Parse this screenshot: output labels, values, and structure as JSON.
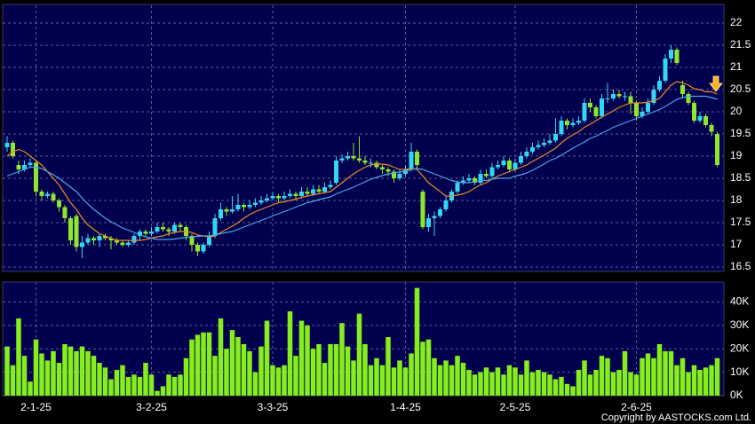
{
  "chart_data": [
    {
      "type": "candlestick",
      "categories": [
        null,
        null,
        null,
        null,
        null,
        "2-1-25",
        null,
        null,
        null,
        null,
        null,
        null,
        null,
        null,
        null,
        null,
        null,
        null,
        null,
        null,
        null,
        null,
        null,
        null,
        null,
        "3-2-25",
        null,
        null,
        null,
        null,
        null,
        null,
        null,
        null,
        null,
        null,
        null,
        null,
        null,
        null,
        null,
        null,
        null,
        null,
        null,
        null,
        "3-3-25",
        null,
        null,
        null,
        null,
        null,
        null,
        null,
        null,
        null,
        null,
        null,
        null,
        null,
        null,
        null,
        null,
        null,
        null,
        null,
        null,
        null,
        null,
        "1-4-25",
        null,
        null,
        null,
        null,
        null,
        null,
        null,
        null,
        null,
        null,
        null,
        null,
        null,
        null,
        null,
        null,
        null,
        null,
        "2-5-25",
        null,
        null,
        null,
        null,
        null,
        null,
        null,
        null,
        null,
        null,
        null,
        null,
        null,
        null,
        null,
        null,
        null,
        null,
        null,
        null,
        "2-6-25",
        null,
        null,
        null,
        null,
        null,
        null,
        null,
        null,
        null,
        null,
        null,
        null,
        null,
        null
      ],
      "open": [
        19.2,
        19.3,
        18.8,
        18.7,
        18.8,
        18.85,
        18.2,
        18.1,
        18.15,
        18.0,
        17.85,
        17.6,
        17.65,
        16.95,
        17.05,
        17.15,
        17.1,
        17.2,
        17.15,
        17.1,
        17.05,
        17.0,
        17.05,
        17.2,
        17.3,
        17.25,
        17.3,
        17.4,
        17.35,
        17.3,
        17.45,
        17.4,
        17.2,
        17.0,
        16.85,
        17.0,
        17.2,
        17.6,
        17.8,
        17.75,
        17.8,
        17.9,
        17.85,
        17.9,
        17.95,
        18.0,
        18.05,
        18.1,
        18.05,
        18.1,
        18.15,
        18.1,
        18.2,
        18.15,
        18.25,
        18.2,
        18.3,
        18.4,
        18.9,
        18.95,
        19.0,
        18.95,
        18.9,
        18.85,
        18.85,
        18.75,
        18.7,
        18.65,
        18.5,
        18.6,
        18.7,
        19.1,
        18.2,
        17.4,
        17.6,
        17.65,
        17.8,
        18.0,
        18.2,
        18.4,
        18.45,
        18.5,
        18.4,
        18.6,
        18.55,
        18.75,
        18.8,
        18.9,
        18.7,
        18.85,
        19.0,
        19.1,
        19.2,
        19.25,
        19.3,
        19.35,
        19.5,
        19.8,
        19.7,
        19.75,
        19.8,
        20.2,
        20.1,
        19.9,
        20.3,
        20.3,
        20.4,
        20.35,
        20.35,
        20.2,
        19.9,
        20.0,
        20.2,
        20.5,
        20.7,
        21.2,
        21.4,
        20.6,
        20.4,
        20.2,
        19.8,
        19.9,
        19.7,
        19.5
      ],
      "high": [
        19.45,
        19.35,
        18.9,
        18.9,
        18.95,
        18.9,
        18.25,
        18.2,
        18.2,
        18.05,
        17.9,
        17.65,
        17.7,
        17.2,
        17.25,
        17.2,
        17.25,
        17.25,
        17.2,
        17.15,
        17.1,
        17.1,
        17.25,
        17.35,
        17.35,
        17.4,
        17.5,
        17.5,
        17.4,
        17.5,
        17.5,
        17.45,
        17.25,
        17.05,
        17.05,
        17.3,
        17.7,
        17.95,
        17.85,
        18.1,
        18.15,
        17.95,
        18.0,
        18.05,
        18.1,
        18.15,
        18.2,
        18.15,
        18.2,
        18.25,
        18.2,
        18.3,
        18.3,
        18.35,
        18.35,
        18.4,
        18.45,
        19.0,
        19.05,
        19.1,
        19.3,
        19.45,
        19.0,
        18.95,
        18.9,
        18.8,
        18.75,
        18.7,
        18.7,
        18.8,
        19.3,
        19.15,
        18.25,
        17.7,
        17.75,
        17.85,
        18.1,
        18.25,
        18.45,
        18.55,
        18.6,
        18.55,
        18.7,
        18.7,
        18.85,
        18.9,
        19.0,
        18.95,
        18.95,
        19.1,
        19.2,
        19.3,
        19.35,
        19.4,
        19.5,
        19.85,
        19.9,
        19.85,
        19.85,
        19.9,
        20.3,
        20.3,
        20.15,
        20.4,
        20.65,
        20.5,
        20.5,
        20.45,
        20.45,
        20.25,
        20.1,
        20.3,
        20.6,
        20.8,
        21.3,
        21.5,
        21.45,
        20.7,
        20.45,
        20.25,
        20.0,
        19.95,
        19.75,
        19.55
      ],
      "low": [
        19.1,
        18.95,
        18.6,
        18.65,
        18.75,
        18.1,
        18.0,
        18.05,
        17.95,
        17.75,
        17.5,
        17.0,
        16.85,
        16.7,
        17.0,
        17.0,
        16.95,
        17.1,
        16.9,
        17.0,
        16.95,
        16.95,
        17.0,
        17.1,
        17.2,
        17.2,
        17.25,
        17.3,
        17.2,
        17.25,
        17.3,
        17.1,
        16.85,
        16.75,
        16.8,
        16.95,
        17.15,
        17.55,
        17.65,
        17.7,
        17.75,
        17.75,
        17.8,
        17.85,
        17.9,
        17.95,
        18.0,
        17.95,
        18.0,
        18.05,
        18.0,
        18.05,
        18.1,
        18.1,
        18.15,
        18.15,
        18.25,
        18.35,
        18.85,
        18.9,
        18.9,
        18.85,
        18.8,
        18.75,
        18.7,
        18.6,
        18.55,
        18.4,
        18.45,
        18.55,
        18.65,
        18.7,
        17.35,
        17.3,
        17.2,
        17.6,
        17.75,
        17.95,
        18.15,
        18.35,
        18.4,
        18.35,
        18.35,
        18.5,
        18.5,
        18.7,
        18.75,
        18.65,
        18.65,
        18.8,
        18.95,
        19.05,
        19.15,
        19.2,
        19.25,
        19.3,
        19.45,
        19.6,
        19.65,
        19.7,
        19.75,
        20.0,
        19.85,
        19.85,
        20.2,
        20.25,
        20.3,
        20.25,
        19.95,
        19.8,
        19.85,
        19.95,
        20.15,
        20.45,
        20.65,
        21.1,
        21.05,
        20.3,
        20.15,
        19.75,
        19.75,
        19.65,
        19.45,
        18.75
      ],
      "close": [
        19.3,
        19.0,
        18.7,
        18.8,
        18.85,
        18.2,
        18.1,
        18.15,
        18.0,
        17.85,
        17.6,
        17.1,
        16.95,
        17.05,
        17.15,
        17.1,
        17.2,
        17.15,
        17.1,
        17.05,
        17.0,
        17.05,
        17.2,
        17.3,
        17.25,
        17.3,
        17.4,
        17.35,
        17.3,
        17.45,
        17.4,
        17.2,
        17.0,
        16.85,
        17.0,
        17.2,
        17.6,
        17.8,
        17.75,
        17.8,
        17.9,
        17.85,
        17.9,
        17.95,
        18.0,
        18.05,
        18.1,
        18.05,
        18.1,
        18.15,
        18.1,
        18.2,
        18.15,
        18.25,
        18.2,
        18.3,
        18.35,
        18.9,
        18.95,
        19.0,
        18.95,
        18.9,
        18.85,
        18.85,
        18.75,
        18.7,
        18.65,
        18.5,
        18.6,
        18.7,
        19.1,
        18.8,
        17.4,
        17.6,
        17.65,
        17.8,
        18.0,
        18.2,
        18.4,
        18.45,
        18.5,
        18.4,
        18.6,
        18.55,
        18.75,
        18.8,
        18.9,
        18.7,
        18.85,
        19.0,
        19.1,
        19.2,
        19.25,
        19.3,
        19.35,
        19.5,
        19.8,
        19.7,
        19.75,
        19.8,
        20.2,
        20.1,
        19.9,
        20.3,
        20.3,
        20.4,
        20.35,
        20.35,
        20.2,
        19.9,
        20.0,
        20.2,
        20.5,
        20.7,
        21.2,
        21.4,
        21.1,
        20.4,
        20.2,
        19.8,
        19.9,
        19.7,
        19.55,
        18.8
      ],
      "up_color": "#33d6f5",
      "down_color": "#8ee62e",
      "series": [
        {
          "color": "#f08a24",
          "values": [
            19.0,
            19.1,
            19.15,
            19.1,
            19.0,
            18.9,
            18.8,
            18.65,
            18.5,
            18.35,
            18.15,
            17.95,
            17.8,
            17.6,
            17.45,
            17.35,
            17.25,
            17.2,
            17.15,
            17.1,
            17.1,
            17.1,
            17.1,
            17.1,
            17.12,
            17.15,
            17.18,
            17.2,
            17.25,
            17.28,
            17.3,
            17.3,
            17.28,
            17.22,
            17.2,
            17.18,
            17.2,
            17.28,
            17.35,
            17.42,
            17.5,
            17.6,
            17.68,
            17.75,
            17.8,
            17.85,
            17.9,
            17.95,
            17.97,
            18.0,
            18.03,
            18.07,
            18.1,
            18.13,
            18.15,
            18.18,
            18.2,
            18.3,
            18.4,
            18.5,
            18.6,
            18.68,
            18.75,
            18.8,
            18.82,
            18.82,
            18.8,
            18.75,
            18.7,
            18.7,
            18.72,
            18.7,
            18.55,
            18.4,
            18.3,
            18.2,
            18.1,
            18.1,
            18.12,
            18.15,
            18.2,
            18.28,
            18.35,
            18.4,
            18.48,
            18.55,
            18.6,
            18.65,
            18.7,
            18.75,
            18.8,
            18.88,
            18.95,
            19.02,
            19.1,
            19.18,
            19.3,
            19.4,
            19.48,
            19.55,
            19.65,
            19.72,
            19.8,
            19.88,
            19.95,
            20.02,
            20.1,
            20.15,
            20.2,
            20.2,
            20.2,
            20.22,
            20.25,
            20.3,
            20.45,
            20.6,
            20.68,
            20.65,
            20.6,
            20.52,
            20.5,
            20.45,
            20.45,
            20.4
          ]
        },
        {
          "color": "#4aa8ec",
          "values": [
            18.55,
            18.6,
            18.65,
            18.7,
            18.75,
            18.75,
            18.72,
            18.65,
            18.58,
            18.5,
            18.4,
            18.3,
            18.2,
            18.05,
            17.92,
            17.8,
            17.7,
            17.6,
            17.52,
            17.45,
            17.38,
            17.33,
            17.28,
            17.22,
            17.18,
            17.15,
            17.12,
            17.12,
            17.12,
            17.13,
            17.15,
            17.17,
            17.18,
            17.19,
            17.2,
            17.2,
            17.22,
            17.25,
            17.28,
            17.3,
            17.35,
            17.4,
            17.45,
            17.5,
            17.55,
            17.6,
            17.65,
            17.7,
            17.75,
            17.8,
            17.85,
            17.9,
            17.95,
            17.98,
            18.02,
            18.05,
            18.08,
            18.15,
            18.2,
            18.25,
            18.3,
            18.36,
            18.42,
            18.48,
            18.52,
            18.56,
            18.6,
            18.62,
            18.64,
            18.66,
            18.7,
            18.72,
            18.7,
            18.65,
            18.6,
            18.55,
            18.5,
            18.45,
            18.42,
            18.4,
            18.4,
            18.42,
            18.45,
            18.45,
            18.48,
            18.5,
            18.5,
            18.5,
            18.55,
            18.58,
            18.62,
            18.68,
            18.75,
            18.82,
            18.9,
            18.95,
            19.02,
            19.1,
            19.18,
            19.25,
            19.32,
            19.4,
            19.45,
            19.52,
            19.58,
            19.65,
            19.7,
            19.75,
            19.8,
            19.85,
            19.9,
            19.95,
            20.0,
            20.05,
            20.12,
            20.2,
            20.28,
            20.32,
            20.35,
            20.35,
            20.35,
            20.35,
            20.32,
            20.28
          ]
        }
      ],
      "ylim": [
        16.4,
        22.4
      ],
      "yticks": [
        16.5,
        17,
        17.5,
        18,
        18.5,
        19,
        19.5,
        20,
        20.5,
        21,
        21.5,
        22
      ],
      "grid": true
    },
    {
      "type": "bar",
      "color": "#86ee1c",
      "values": [
        21,
        13,
        33,
        17,
        6,
        24,
        18,
        15,
        19,
        14,
        22,
        21,
        19,
        21,
        19,
        17,
        14,
        12,
        7,
        11,
        13,
        8,
        9,
        8,
        14,
        9,
        2,
        4,
        9,
        8,
        9,
        16,
        24,
        26,
        27,
        27,
        17,
        33,
        20,
        28,
        25,
        22,
        19,
        10,
        21,
        32,
        13,
        12,
        13,
        36,
        17,
        32,
        30,
        20,
        22,
        14,
        22,
        22,
        31,
        21,
        15,
        35,
        22,
        13,
        16,
        13,
        25,
        12,
        15,
        12,
        18,
        46,
        23,
        24,
        16,
        13,
        15,
        13,
        17,
        14,
        11,
        9,
        10,
        12,
        10,
        12,
        9,
        13,
        12,
        9,
        15,
        10,
        11,
        10,
        9,
        7,
        8,
        5,
        4,
        11,
        15,
        9,
        11,
        17,
        16,
        10,
        11,
        19,
        10,
        9,
        16,
        18,
        16,
        22,
        19,
        19,
        13,
        16,
        10,
        13,
        11,
        12,
        13,
        16
      ],
      "ylim": [
        0,
        48.5
      ],
      "yticks": [
        {
          "value": 0,
          "label": "0K"
        },
        {
          "value": 10,
          "label": "10K"
        },
        {
          "value": 20,
          "label": "20K"
        },
        {
          "value": 30,
          "label": "30K"
        },
        {
          "value": 40,
          "label": "40K"
        }
      ],
      "grid": true,
      "note": "Copyright by AASTOCKS.com Ltd."
    }
  ]
}
